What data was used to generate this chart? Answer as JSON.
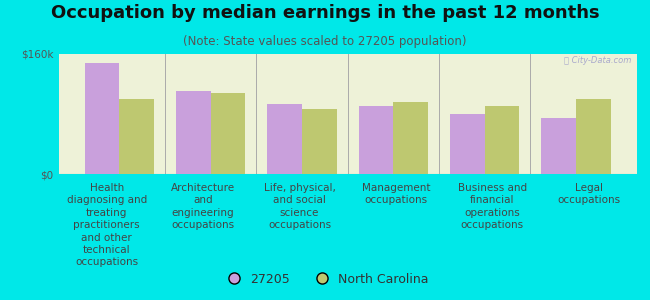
{
  "title": "Occupation by median earnings in the past 12 months",
  "subtitle": "(Note: State values scaled to 27205 population)",
  "background_color": "#00e8e8",
  "plot_bg_color": "#eef2d8",
  "categories": [
    "Health\ndiagnosing and\ntreating\npractitioners\nand other\ntechnical\noccupations",
    "Architecture\nand\nengineering\noccupations",
    "Life, physical,\nand social\nscience\noccupations",
    "Management\noccupations",
    "Business and\nfinancial\noperations\noccupations",
    "Legal\noccupations"
  ],
  "values_27205": [
    148000,
    110000,
    93000,
    90000,
    80000,
    75000
  ],
  "values_nc": [
    100000,
    108000,
    87000,
    96000,
    90000,
    100000
  ],
  "color_27205": "#c9a0dc",
  "color_nc": "#bec870",
  "ylim": [
    0,
    160000
  ],
  "yticks": [
    0,
    160000
  ],
  "ytick_labels": [
    "$0",
    "$160k"
  ],
  "legend_labels": [
    "27205",
    "North Carolina"
  ],
  "bar_width": 0.38,
  "title_fontsize": 13,
  "subtitle_fontsize": 8.5,
  "tick_fontsize": 7.5,
  "legend_fontsize": 9
}
